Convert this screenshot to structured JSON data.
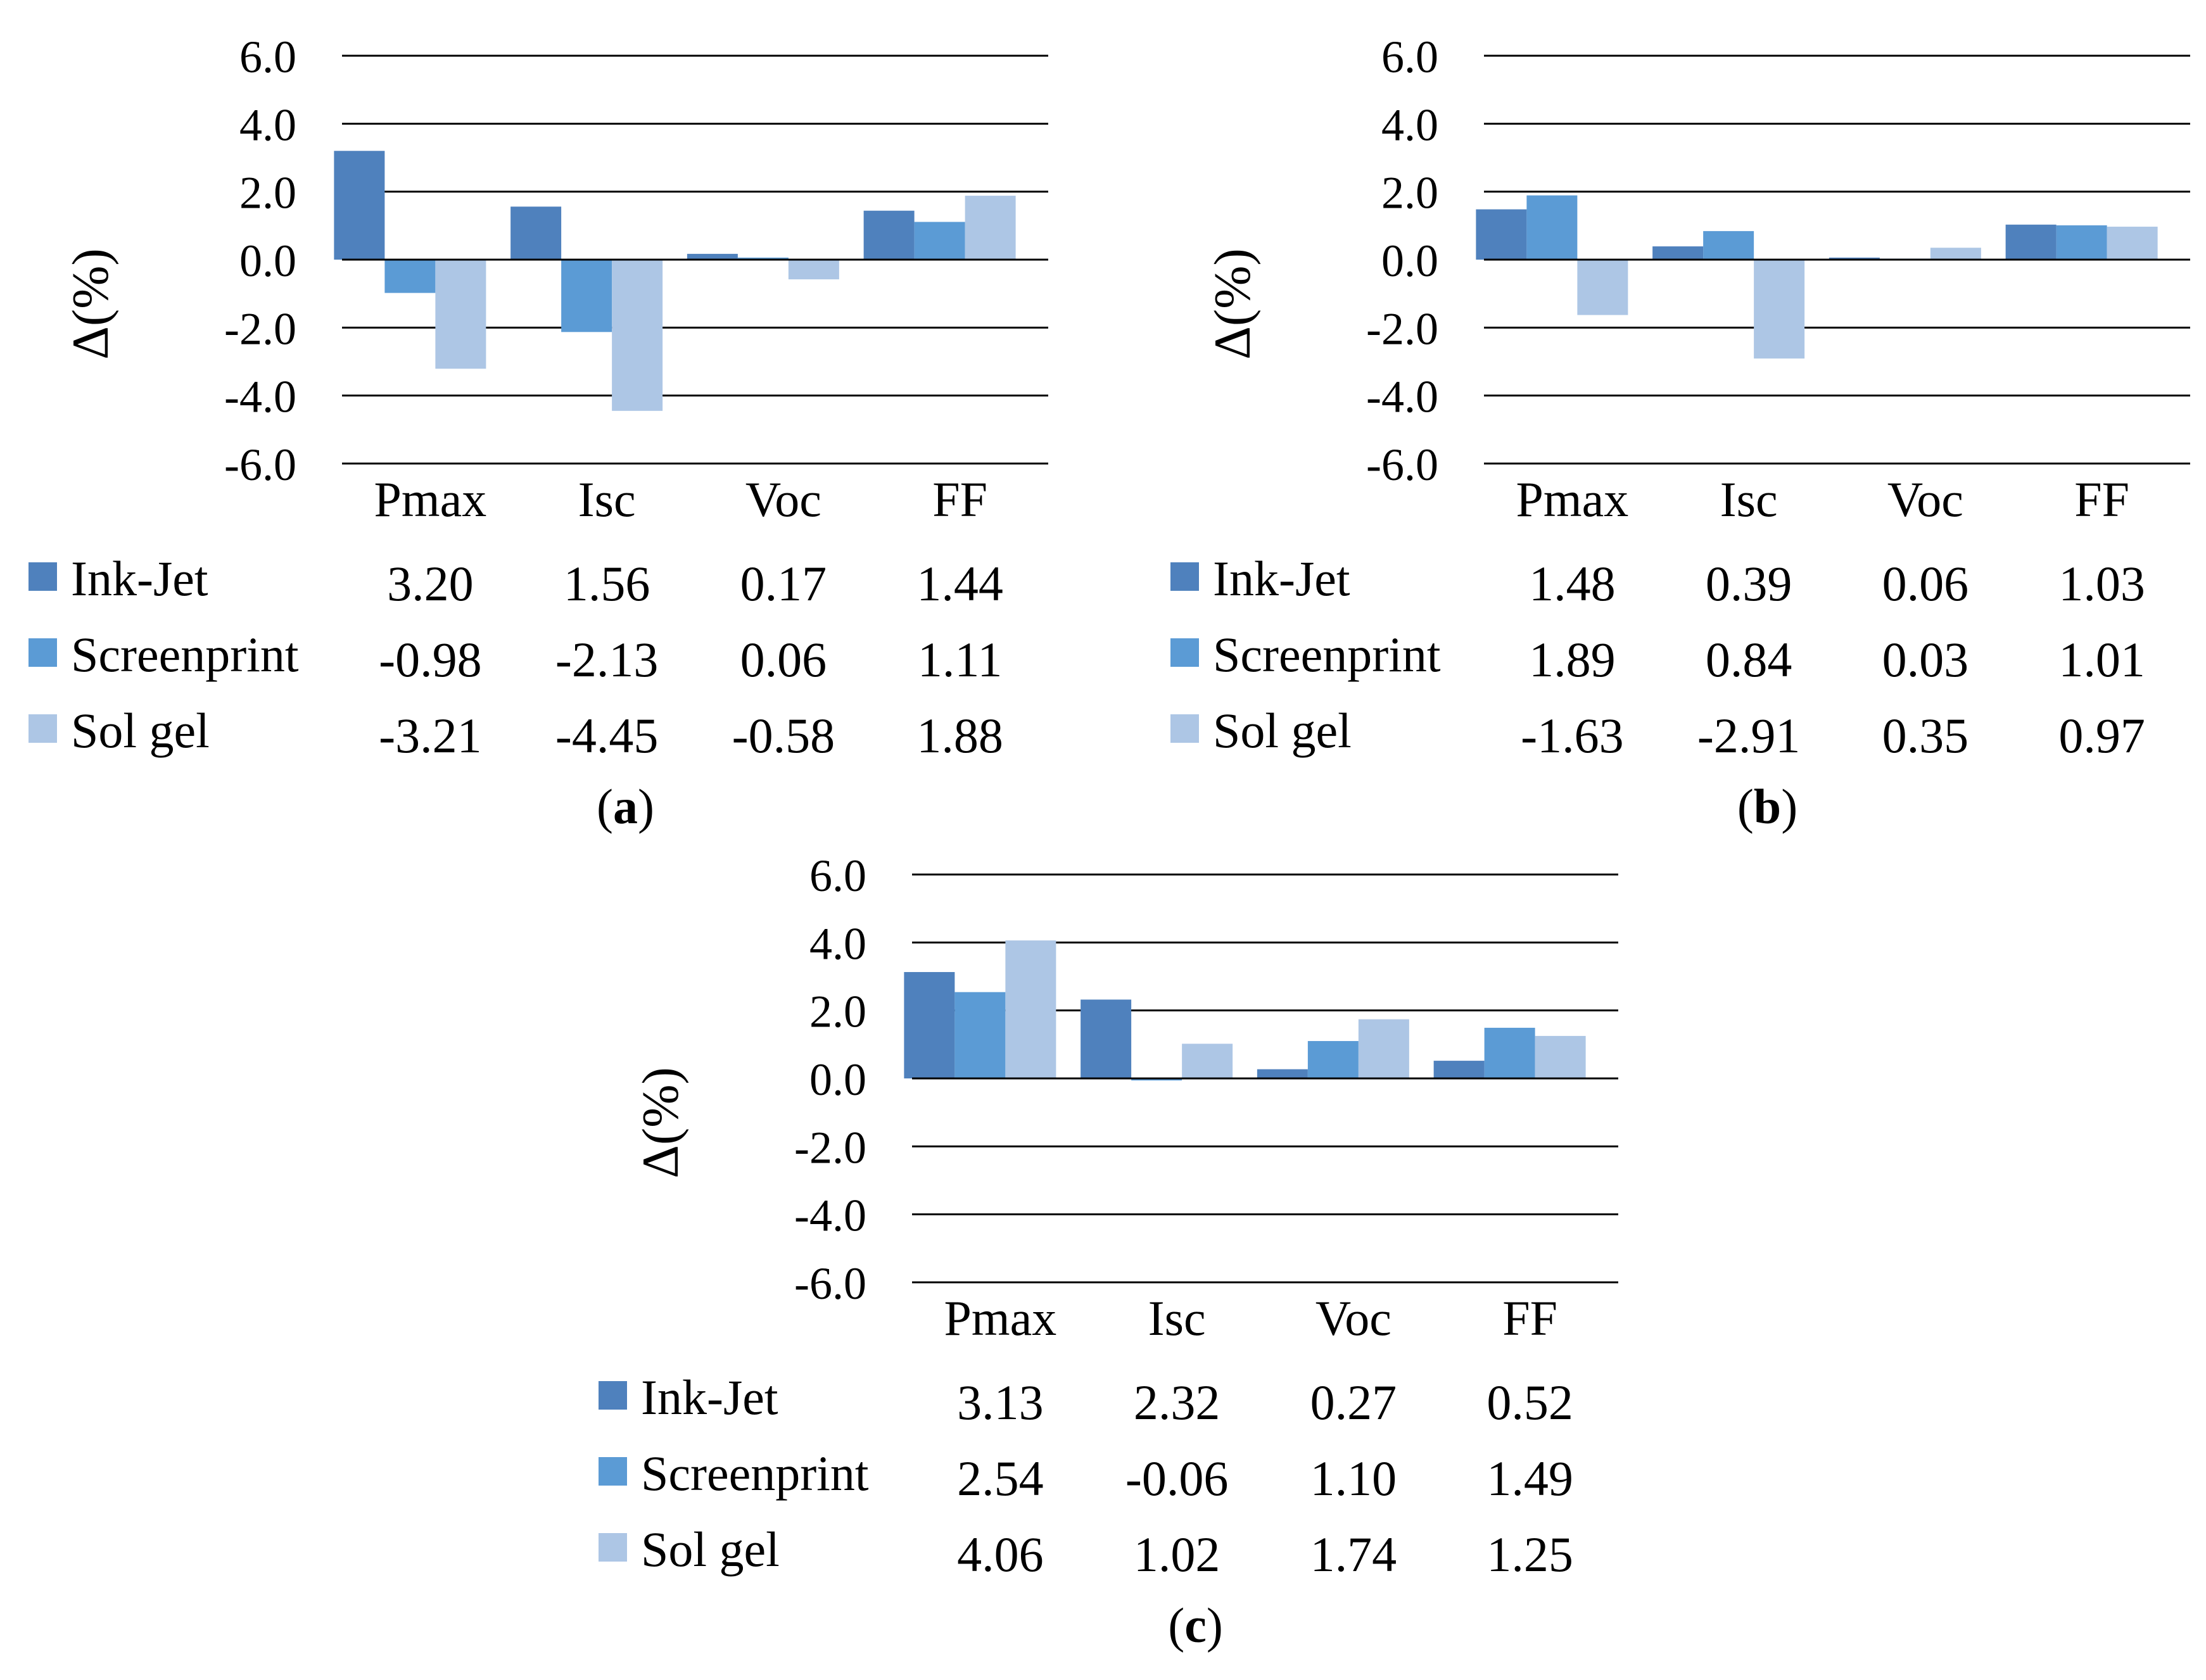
{
  "chart_data": [
    {
      "type": "bar",
      "caption": "a",
      "categories": [
        "Pmax",
        "Isc",
        "Voc",
        "FF"
      ],
      "ylabel": "Δ(%)",
      "ylim": [
        -6.0,
        6.0
      ],
      "yticks": [
        "6.0",
        "4.0",
        "2.0",
        "0.0",
        "-2.0",
        "-4.0",
        "-6.0"
      ],
      "grid": true,
      "series": [
        {
          "name": "Ink-Jet",
          "color": "#4f81bd",
          "values": [
            3.2,
            1.56,
            0.17,
            1.44
          ],
          "labels": [
            "3.20",
            "1.56",
            "0.17",
            "1.44"
          ]
        },
        {
          "name": "Screenprint",
          "color": "#5b9bd5",
          "values": [
            -0.98,
            -2.13,
            0.06,
            1.11
          ],
          "labels": [
            "-0.98",
            "-2.13",
            "0.06",
            "1.11"
          ]
        },
        {
          "name": "Sol gel",
          "color": "#adc6e5",
          "values": [
            -3.21,
            -4.45,
            -0.58,
            1.88
          ],
          "labels": [
            "-3.21",
            "-4.45",
            "-0.58",
            "1.88"
          ]
        }
      ]
    },
    {
      "type": "bar",
      "caption": "b",
      "categories": [
        "Pmax",
        "Isc",
        "Voc",
        "FF"
      ],
      "ylabel": "Δ(%)",
      "ylim": [
        -6.0,
        6.0
      ],
      "yticks": [
        "6.0",
        "4.0",
        "2.0",
        "0.0",
        "-2.0",
        "-4.0",
        "-6.0"
      ],
      "grid": true,
      "series": [
        {
          "name": "Ink-Jet",
          "color": "#4f81bd",
          "values": [
            1.48,
            0.39,
            0.06,
            1.03
          ],
          "labels": [
            "1.48",
            "0.39",
            "0.06",
            "1.03"
          ]
        },
        {
          "name": "Screenprint",
          "color": "#5b9bd5",
          "values": [
            1.89,
            0.84,
            0.03,
            1.01
          ],
          "labels": [
            "1.89",
            "0.84",
            "0.03",
            "1.01"
          ]
        },
        {
          "name": "Sol gel",
          "color": "#adc6e5",
          "values": [
            -1.63,
            -2.91,
            0.35,
            0.97
          ],
          "labels": [
            "-1.63",
            "-2.91",
            "0.35",
            "0.97"
          ]
        }
      ]
    },
    {
      "type": "bar",
      "caption": "c",
      "categories": [
        "Pmax",
        "Isc",
        "Voc",
        "FF"
      ],
      "ylabel": "Δ(%)",
      "ylim": [
        -6.0,
        6.0
      ],
      "yticks": [
        "6.0",
        "4.0",
        "2.0",
        "0.0",
        "-2.0",
        "-4.0",
        "-6.0"
      ],
      "grid": true,
      "series": [
        {
          "name": "Ink-Jet",
          "color": "#4f81bd",
          "values": [
            3.13,
            2.32,
            0.27,
            0.52
          ],
          "labels": [
            "3.13",
            "2.32",
            "0.27",
            "0.52"
          ]
        },
        {
          "name": "Screenprint",
          "color": "#5b9bd5",
          "values": [
            2.54,
            -0.06,
            1.1,
            1.49
          ],
          "labels": [
            "2.54",
            "-0.06",
            "1.10",
            "1.49"
          ]
        },
        {
          "name": "Sol gel",
          "color": "#adc6e5",
          "values": [
            4.06,
            1.02,
            1.74,
            1.25
          ],
          "labels": [
            "4.06",
            "1.02",
            "1.74",
            "1.25"
          ]
        }
      ]
    }
  ]
}
